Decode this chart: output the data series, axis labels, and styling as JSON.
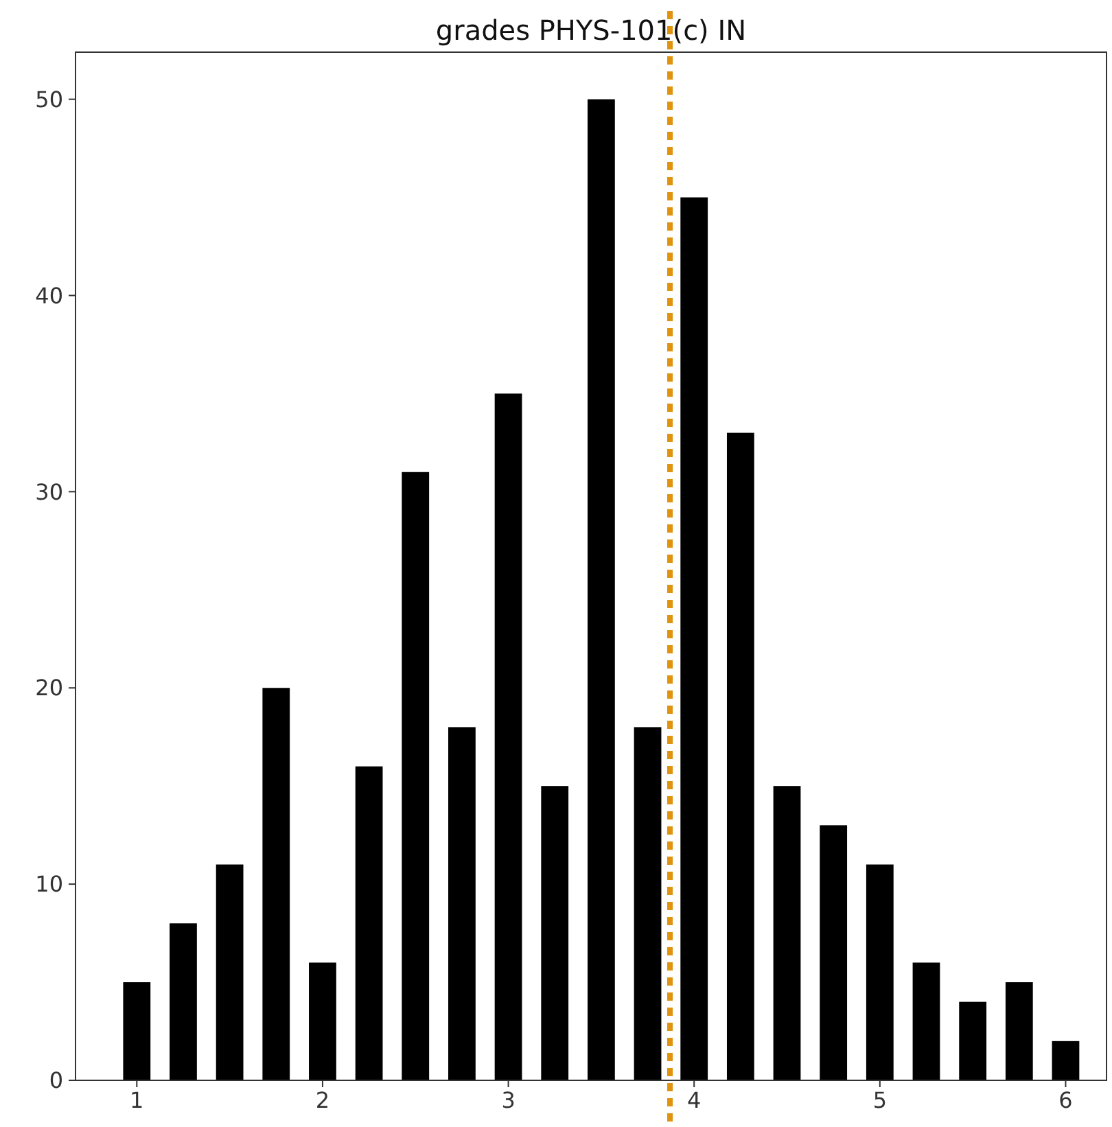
{
  "chart_data": {
    "type": "bar",
    "title": "grades PHYS-101(c) IN",
    "x": [
      1,
      1.25,
      1.5,
      1.75,
      2,
      2.25,
      2.5,
      2.75,
      3,
      3.25,
      3.5,
      3.75,
      4,
      4.25,
      4.5,
      4.75,
      5,
      5.25,
      5.5,
      5.75,
      6
    ],
    "values": [
      5,
      8,
      11,
      20,
      6,
      16,
      31,
      18,
      35,
      15,
      50,
      18,
      45,
      33,
      15,
      13,
      11,
      6,
      4,
      5,
      2
    ],
    "color": "#000000",
    "xlim": [
      0.67,
      6.22
    ],
    "xticks": [
      1,
      2,
      3,
      4,
      5,
      6
    ],
    "ylim": [
      0,
      52.4
    ],
    "yticks": [
      0,
      10,
      20,
      30,
      40,
      50
    ],
    "ref_lines": [
      {
        "axis": "x",
        "value": 3.87,
        "color": "#e0930e",
        "line_style": "dashed"
      }
    ],
    "grid": false
  }
}
